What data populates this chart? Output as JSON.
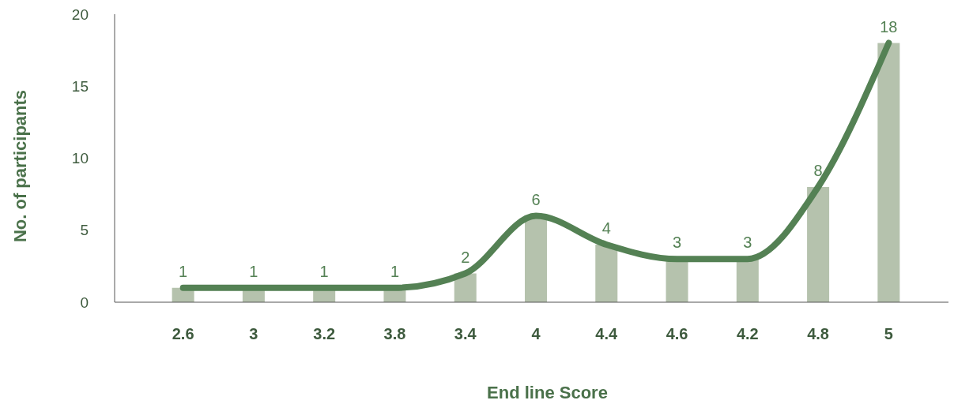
{
  "chart_data": {
    "type": "bar",
    "xlabel": "End line Score",
    "ylabel": "No. of participants",
    "categories": [
      "2.6",
      "3",
      "3.2",
      "3.8",
      "3.4",
      "4",
      "4.4",
      "4.6",
      "4.2",
      "4.8",
      "5"
    ],
    "series": [
      {
        "color": "#b5c2ad",
        "values": [
          1,
          1,
          1,
          1,
          2,
          6,
          4,
          3,
          3,
          8,
          18
        ]
      },
      {
        "type": "line",
        "color": "#548154",
        "values": [
          1,
          1,
          1,
          1,
          2,
          6,
          4,
          3,
          3,
          8,
          18
        ],
        "value_labels": [
          "1",
          "1",
          "1",
          "1",
          "2",
          "6",
          "4",
          "3",
          "3",
          "8",
          "18"
        ]
      }
    ],
    "ylim": [
      0,
      20
    ],
    "yticks": [
      0,
      5,
      10,
      15,
      20
    ],
    "grid": false,
    "marker": "none",
    "line_style": "solid"
  }
}
